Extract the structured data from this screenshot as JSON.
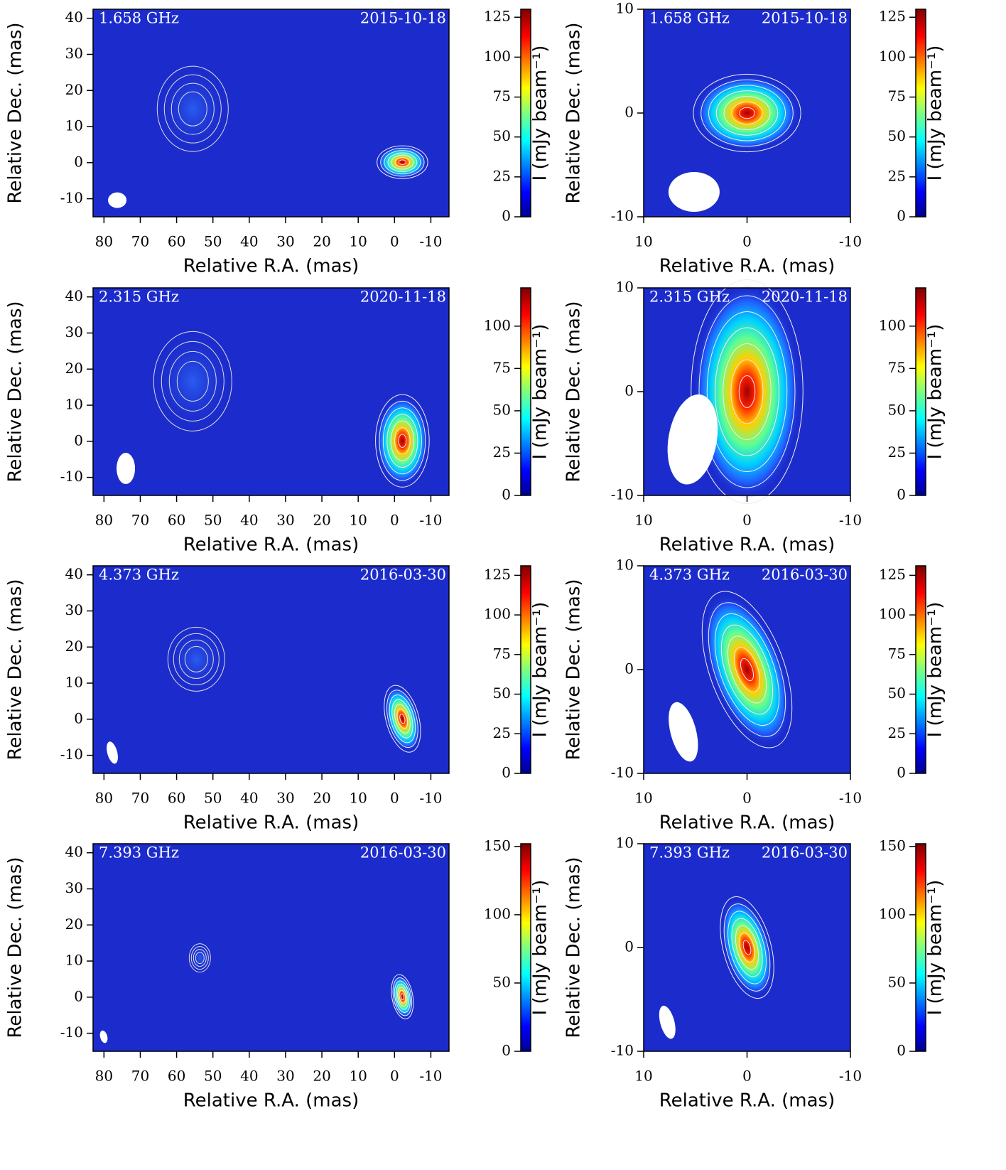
{
  "chart_data": [
    {
      "type": "image",
      "freq_label": "1.658 GHz",
      "date_label": "2015-10-18",
      "xlabel": "Relative R.A. (mas)",
      "ylabel": "Relative Dec. (mas)",
      "xlim": [
        83,
        -15
      ],
      "ylim": [
        -15,
        42.5
      ],
      "xticks": [
        80,
        70,
        60,
        50,
        40,
        30,
        20,
        10,
        0,
        -10
      ],
      "yticks": [
        -10,
        0,
        10,
        20,
        30,
        40
      ],
      "colorbar_label": "I (mJy beam⁻¹)",
      "clim": [
        0,
        130
      ],
      "cticks": [
        0,
        25,
        50,
        75,
        100,
        125
      ]
    },
    {
      "type": "image",
      "freq_label": "1.658 GHz",
      "date_label": "2015-10-18",
      "xlabel": "Relative R.A. (mas)",
      "ylabel": "Relative Dec. (mas)",
      "xlim": [
        10,
        -10
      ],
      "ylim": [
        -10,
        10
      ],
      "xticks": [
        10,
        0,
        -10
      ],
      "yticks": [
        -10,
        0,
        10
      ],
      "colorbar_label": "I (mJy beam⁻¹)",
      "clim": [
        0,
        130
      ],
      "cticks": [
        0,
        25,
        50,
        75,
        100,
        125
      ]
    },
    {
      "type": "image",
      "freq_label": "2.315 GHz",
      "date_label": "2020-11-18",
      "xlabel": "Relative R.A. (mas)",
      "ylabel": "Relative Dec. (mas)",
      "xlim": [
        83,
        -15
      ],
      "ylim": [
        -15,
        42.5
      ],
      "xticks": [
        80,
        70,
        60,
        50,
        40,
        30,
        20,
        10,
        0,
        -10
      ],
      "yticks": [
        -10,
        0,
        10,
        20,
        30,
        40
      ],
      "colorbar_label": "I (mJy beam⁻¹)",
      "clim": [
        0,
        122.6
      ],
      "cticks": [
        0,
        25,
        50,
        75,
        100
      ]
    },
    {
      "type": "image",
      "freq_label": "2.315 GHz",
      "date_label": "2020-11-18",
      "xlabel": "Relative R.A. (mas)",
      "ylabel": "Relative Dec. (mas)",
      "xlim": [
        10,
        -10
      ],
      "ylim": [
        -10,
        10
      ],
      "xticks": [
        10,
        0,
        -10
      ],
      "yticks": [
        -10,
        0,
        10
      ],
      "colorbar_label": "I (mJy beam⁻¹)",
      "clim": [
        0,
        122.6
      ],
      "cticks": [
        0,
        25,
        50,
        75,
        100
      ]
    },
    {
      "type": "image",
      "freq_label": "4.373 GHz",
      "date_label": "2016-03-30",
      "xlabel": "Relative R.A. (mas)",
      "ylabel": "Relative Dec. (mas)",
      "xlim": [
        83,
        -15
      ],
      "ylim": [
        -15,
        42.5
      ],
      "xticks": [
        80,
        70,
        60,
        50,
        40,
        30,
        20,
        10,
        0,
        -10
      ],
      "yticks": [
        -10,
        0,
        10,
        20,
        30,
        40
      ],
      "colorbar_label": "I (mJy beam⁻¹)",
      "clim": [
        0,
        131
      ],
      "cticks": [
        0,
        25,
        50,
        75,
        100,
        125
      ]
    },
    {
      "type": "image",
      "freq_label": "4.373 GHz",
      "date_label": "2016-03-30",
      "xlabel": "Relative R.A. (mas)",
      "ylabel": "Relative Dec. (mas)",
      "xlim": [
        10,
        -10
      ],
      "ylim": [
        -10,
        10
      ],
      "xticks": [
        10,
        0,
        -10
      ],
      "yticks": [
        -10,
        0,
        10
      ],
      "colorbar_label": "I (mJy beam⁻¹)",
      "clim": [
        0,
        131
      ],
      "cticks": [
        0,
        25,
        50,
        75,
        100,
        125
      ]
    },
    {
      "type": "image",
      "freq_label": "7.393 GHz",
      "date_label": "2016-03-30",
      "xlabel": "Relative R.A. (mas)",
      "ylabel": "Relative Dec. (mas)",
      "xlim": [
        83,
        -15
      ],
      "ylim": [
        -15,
        42.5
      ],
      "xticks": [
        80,
        70,
        60,
        50,
        40,
        30,
        20,
        10,
        0,
        -10
      ],
      "yticks": [
        -10,
        0,
        10,
        20,
        30,
        40
      ],
      "colorbar_label": "I (mJy beam⁻¹)",
      "clim": [
        0,
        152
      ],
      "cticks": [
        0,
        50,
        100,
        150
      ]
    },
    {
      "type": "image",
      "freq_label": "7.393 GHz",
      "date_label": "2016-03-30",
      "xlabel": "Relative R.A. (mas)",
      "ylabel": "Relative Dec. (mas)",
      "xlim": [
        10,
        -10
      ],
      "ylim": [
        -10,
        10
      ],
      "xticks": [
        10,
        0,
        -10
      ],
      "yticks": [
        -10,
        0,
        10
      ],
      "colorbar_label": "I (mJy beam⁻¹)",
      "clim": [
        0,
        152
      ],
      "cticks": [
        0,
        50,
        100,
        150
      ]
    }
  ]
}
